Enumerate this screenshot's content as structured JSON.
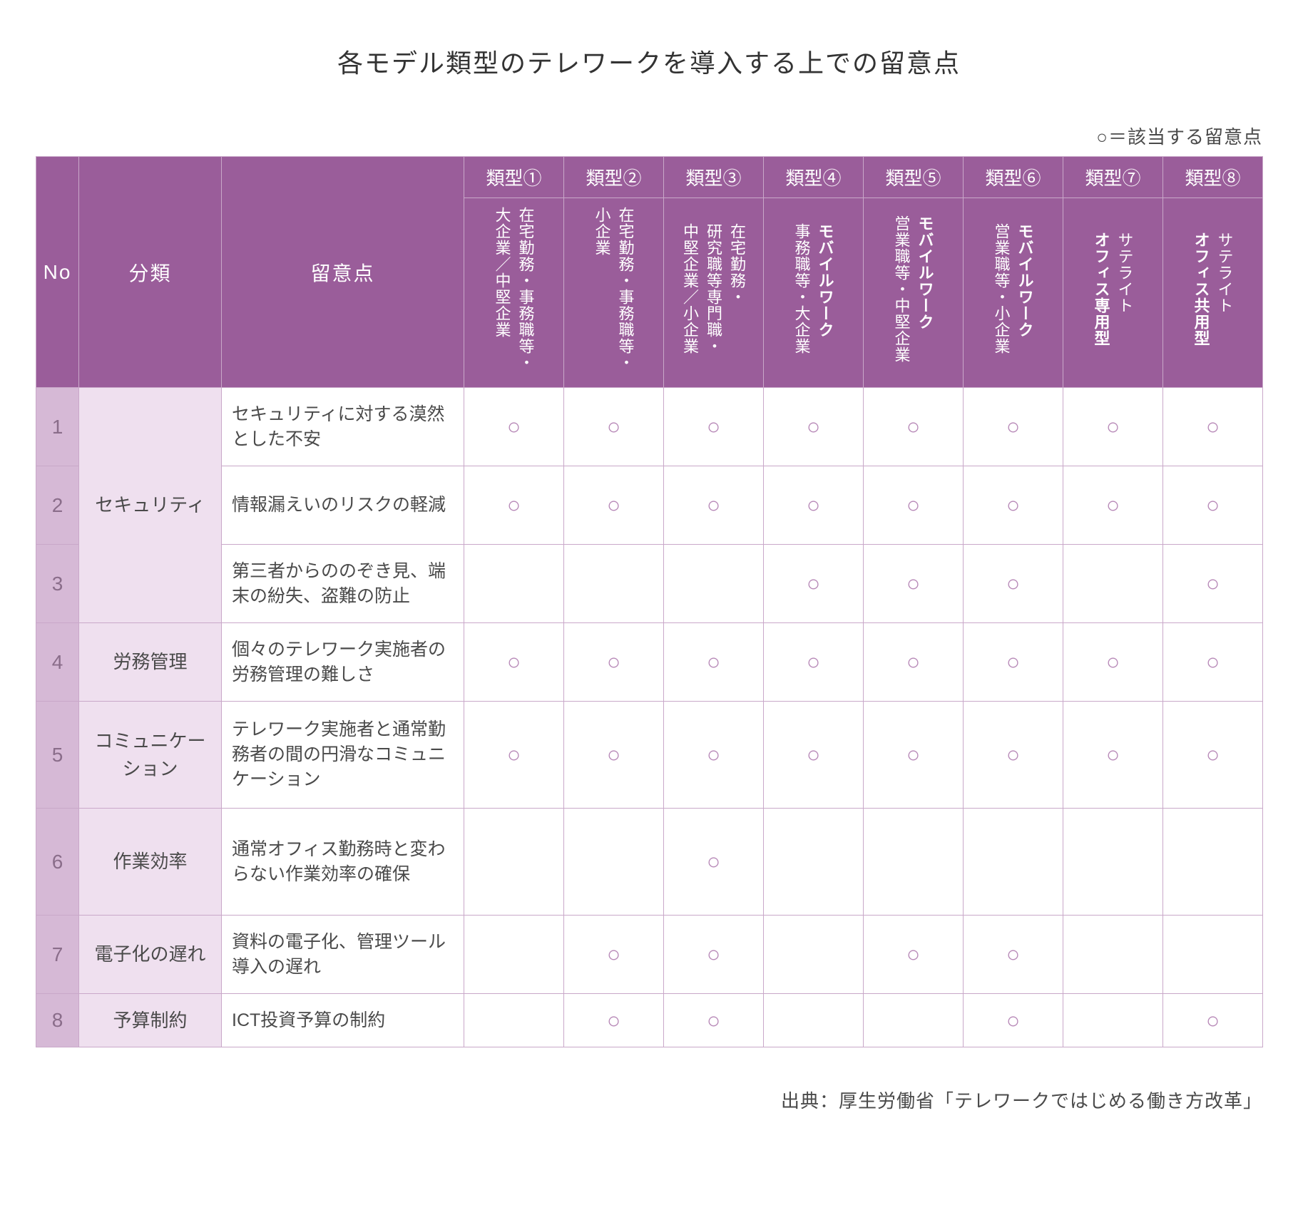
{
  "colors": {
    "header_bg": "#9a5d9a",
    "header_text": "#ffffff",
    "no_cell_bg": "#d6b9d6",
    "no_cell_text": "#8a6d8a",
    "cat_cell_bg": "#efe0ef",
    "body_text": "#4a4a4a",
    "border": "#c9a8c9",
    "circle": "#b788b7",
    "page_bg": "#ffffff"
  },
  "title": "各モデル類型のテレワークを導入する上での留意点",
  "legend": "○＝該当する留意点",
  "circle_mark": "○",
  "headers": {
    "no": "No",
    "category": "分類",
    "point": "留意点",
    "types": [
      {
        "top": "類型①",
        "l1": "在宅勤務・事務職等・",
        "l2": "大企業／中堅企業",
        "bold_l1": false
      },
      {
        "top": "類型②",
        "l1": "在宅勤務・事務職等・",
        "l2": "小企業",
        "bold_l1": false
      },
      {
        "top": "類型③",
        "l1": "在宅勤務・",
        "l2": "研究職等専門職・",
        "l3": "中堅企業／小企業",
        "bold_l1": false
      },
      {
        "top": "類型④",
        "l1": "モバイルワーク",
        "l2": "事務職等・大企業",
        "bold_l1": true
      },
      {
        "top": "類型⑤",
        "l1": "モバイルワーク",
        "l2": "営業職等・中堅企業",
        "bold_l1": true
      },
      {
        "top": "類型⑥",
        "l1": "モバイルワーク",
        "l2": "営業職等・小企業",
        "bold_l1": true
      },
      {
        "top": "類型⑦",
        "l1": "サテライト",
        "l2": "オフィス専用型",
        "bold_l2": true
      },
      {
        "top": "類型⑧",
        "l1": "サテライト",
        "l2": "オフィス共用型",
        "bold_l2": true
      }
    ]
  },
  "rows": [
    {
      "no": "1",
      "category": "セキュリティ",
      "catSpan": 3,
      "point": "セキュリティに対する漠然とした不安",
      "marks": [
        1,
        1,
        1,
        1,
        1,
        1,
        1,
        1
      ],
      "rowClass": "bodyrow"
    },
    {
      "no": "2",
      "point": "情報漏えいのリスクの軽減",
      "marks": [
        1,
        1,
        1,
        1,
        1,
        1,
        1,
        1
      ],
      "rowClass": "bodyrow"
    },
    {
      "no": "3",
      "point": "第三者からののぞき見、端末の紛失、盗難の防止",
      "marks": [
        0,
        0,
        0,
        1,
        1,
        1,
        0,
        1
      ],
      "rowClass": "bodyrow"
    },
    {
      "no": "4",
      "category": "労務管理",
      "catSpan": 1,
      "point": "個々のテレワーク実施者の労務管理の難しさ",
      "marks": [
        1,
        1,
        1,
        1,
        1,
        1,
        1,
        1
      ],
      "rowClass": "bodyrow"
    },
    {
      "no": "5",
      "category": "コミュニケーション",
      "catSpan": 1,
      "point": "テレワーク実施者と通常勤務者の間の円滑なコミュニケーション",
      "marks": [
        1,
        1,
        1,
        1,
        1,
        1,
        1,
        1
      ],
      "rowClass": "tallrow"
    },
    {
      "no": "6",
      "category": "作業効率",
      "catSpan": 1,
      "point": "通常オフィス勤務時と変わらない作業効率の確保",
      "marks": [
        0,
        0,
        1,
        0,
        0,
        0,
        0,
        0
      ],
      "rowClass": "tallrow"
    },
    {
      "no": "7",
      "category": "電子化の遅れ",
      "catSpan": 1,
      "point": "資料の電子化、管理ツール導入の遅れ",
      "marks": [
        0,
        1,
        1,
        0,
        1,
        1,
        0,
        0
      ],
      "rowClass": "bodyrow"
    },
    {
      "no": "8",
      "category": "予算制約",
      "catSpan": 1,
      "point": "ICT投資予算の制約",
      "marks": [
        0,
        1,
        1,
        0,
        0,
        1,
        0,
        1
      ],
      "rowClass": "shortrow"
    }
  ],
  "source": "出典：厚生労働省「テレワークではじめる働き方改革」"
}
